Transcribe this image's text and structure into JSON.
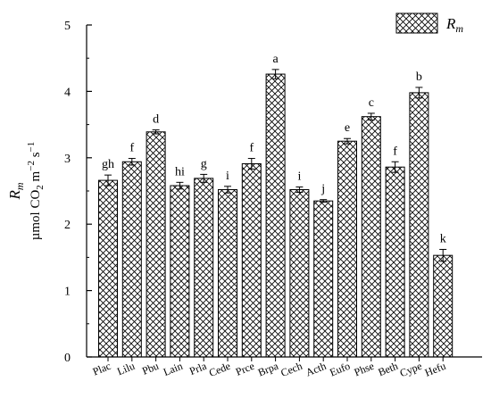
{
  "chart_data": {
    "type": "bar",
    "xlabel": "",
    "ylabel": {
      "symbol": "R",
      "symbol_sub": "m",
      "unit_text": "µmol CO",
      "unit_sub": "2",
      "unit_m": " m",
      "unit_sup_m": "−2",
      "unit_s": " s",
      "unit_sup_s": "−1"
    },
    "ylim": [
      0,
      5
    ],
    "yticks": [
      "0",
      "1",
      "2",
      "3",
      "4",
      "5"
    ],
    "legend": {
      "position": "top-right",
      "label": "R",
      "label_sub": "m"
    },
    "categories": [
      "Plac",
      "Lilu",
      "Pbu",
      "Lain",
      "Prla",
      "Cede",
      "Prce",
      "Brpa",
      "Cech",
      "Acth",
      "Eufo",
      "Phse",
      "Beth",
      "Cype",
      "Hefu"
    ],
    "series": [
      {
        "values": [
          2.66,
          2.94,
          3.39,
          2.58,
          2.69,
          2.52,
          2.91,
          4.26,
          2.52,
          2.35,
          3.25,
          3.62,
          2.86,
          3.98,
          1.53
        ],
        "errors": [
          0.08,
          0.05,
          0.03,
          0.05,
          0.06,
          0.05,
          0.08,
          0.07,
          0.04,
          0.02,
          0.04,
          0.05,
          0.08,
          0.08,
          0.09
        ],
        "letters": [
          "gh",
          "f",
          "d",
          "hi",
          "g",
          "i",
          "f",
          "a",
          "i",
          "j",
          "e",
          "c",
          "f",
          "b",
          "k"
        ]
      }
    ],
    "grid": false,
    "bar_pattern": "crosshatch",
    "colors": {
      "bar_fill": "#ffffff",
      "bar_stroke": "#000000",
      "hatch": "#000000",
      "axis": "#000000"
    }
  }
}
